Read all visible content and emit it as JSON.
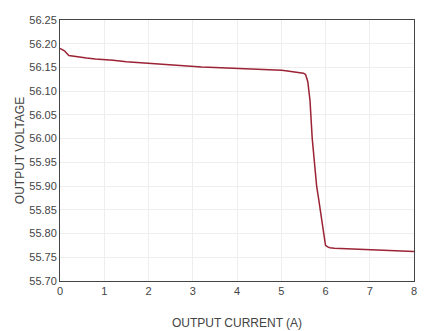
{
  "chart_data": {
    "type": "line",
    "xlabel": "OUTPUT CURRENT (A)",
    "ylabel": "OUTPUT VOLTAGE",
    "x": [
      0.0,
      0.1,
      0.2,
      0.4,
      0.6,
      0.8,
      1.0,
      1.2,
      1.5,
      1.8,
      2.0,
      2.2,
      2.5,
      2.8,
      3.0,
      3.2,
      3.5,
      3.8,
      4.0,
      4.2,
      4.5,
      4.8,
      5.0,
      5.1,
      5.2,
      5.3,
      5.4,
      5.5,
      5.55,
      5.6,
      5.65,
      5.7,
      5.75,
      5.8,
      5.85,
      5.9,
      5.95,
      6.0,
      6.05,
      6.1,
      6.2,
      6.5,
      6.8,
      7.0,
      7.2,
      7.5,
      7.8,
      8.0
    ],
    "values": [
      56.19,
      56.185,
      56.175,
      56.172,
      56.17,
      56.168,
      56.167,
      56.165,
      56.162,
      56.16,
      56.158,
      56.157,
      56.155,
      56.153,
      56.152,
      56.151,
      56.15,
      56.149,
      56.148,
      56.147,
      56.146,
      56.145,
      56.144,
      56.143,
      56.142,
      56.141,
      56.14,
      56.138,
      56.135,
      56.12,
      56.08,
      56.0,
      55.95,
      55.9,
      55.87,
      55.84,
      55.81,
      55.775,
      55.772,
      55.77,
      55.769,
      55.768,
      55.767,
      55.766,
      55.765,
      55.764,
      55.763,
      55.762
    ],
    "color": "#9b2335",
    "xlim": [
      0,
      8
    ],
    "ylim": [
      55.7,
      56.25
    ],
    "xticks": [
      0,
      1,
      2,
      3,
      4,
      5,
      6,
      7,
      8
    ],
    "yticks": [
      {
        "value": 55.7,
        "label": "55.70"
      },
      55.75,
      {
        "value": 55.8,
        "label": "55.80"
      },
      55.85,
      {
        "value": 55.9,
        "label": "55.90"
      },
      55.95,
      {
        "value": 56.0,
        "label": "56.00"
      },
      56.05,
      {
        "value": 56.1,
        "label": "56.10"
      },
      56.15,
      {
        "value": 56.2,
        "label": "56.20"
      },
      56.25
    ],
    "grid": true
  }
}
